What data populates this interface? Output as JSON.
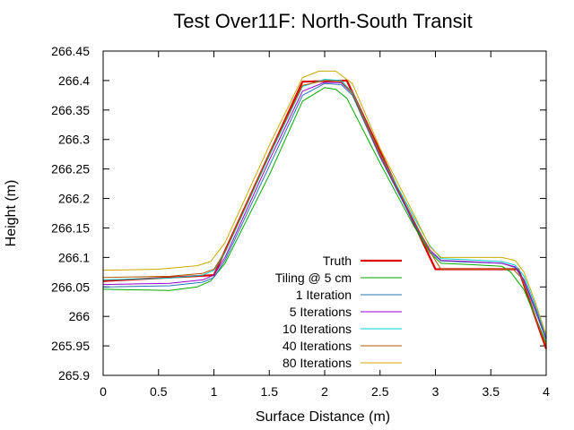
{
  "chart_data": {
    "type": "line",
    "title": "Test Over11F: North-South Transit",
    "xlabel": "Surface Distance (m)",
    "ylabel": "Height (m)",
    "xlim": [
      0,
      4
    ],
    "ylim": [
      265.9,
      266.45
    ],
    "x_ticks": [
      0,
      0.5,
      1,
      1.5,
      2,
      2.5,
      3,
      3.5,
      4
    ],
    "x_tick_labels": [
      "0",
      "0.5",
      "1",
      "1.5",
      "2",
      "2.5",
      "3",
      "3.5",
      "4"
    ],
    "y_ticks": [
      265.9,
      265.95,
      266,
      266.05,
      266.1,
      266.15,
      266.2,
      266.25,
      266.3,
      266.35,
      266.4,
      266.45
    ],
    "y_tick_labels": [
      "265.9",
      "265.95",
      "266",
      "266.05",
      "266.1",
      "266.15",
      "266.2",
      "266.25",
      "266.3",
      "266.35",
      "266.4",
      "266.45"
    ],
    "grid": false,
    "legend_position": "bottom-center",
    "series": [
      {
        "name": "Truth",
        "color": "#dd0000",
        "width": 2.2,
        "points": [
          [
            0,
            266.06
          ],
          [
            1,
            266.07
          ],
          [
            1.8,
            266.398
          ],
          [
            2.2,
            266.4
          ],
          [
            3,
            266.08
          ],
          [
            3.75,
            266.08
          ],
          [
            4,
            265.945
          ]
        ]
      },
      {
        "name": "Tiling @ 5 cm",
        "color": "#00aa00",
        "width": 1,
        "points": [
          [
            0,
            266.046
          ],
          [
            0.6,
            266.044
          ],
          [
            0.85,
            266.05
          ],
          [
            0.97,
            266.06
          ],
          [
            1.1,
            266.09
          ],
          [
            1.5,
            266.24
          ],
          [
            1.8,
            266.365
          ],
          [
            2.0,
            266.388
          ],
          [
            2.1,
            266.385
          ],
          [
            2.2,
            266.37
          ],
          [
            2.5,
            266.26
          ],
          [
            2.8,
            266.155
          ],
          [
            2.95,
            266.108
          ],
          [
            3.05,
            266.09
          ],
          [
            3.3,
            266.088
          ],
          [
            3.6,
            266.085
          ],
          [
            3.68,
            266.075
          ],
          [
            3.8,
            266.045
          ],
          [
            3.9,
            266.0
          ],
          [
            4,
            265.955
          ]
        ]
      },
      {
        "name": "1 Iteration",
        "color": "#1f77b4",
        "width": 1,
        "points": [
          [
            0,
            266.05
          ],
          [
            0.6,
            266.052
          ],
          [
            0.9,
            266.058
          ],
          [
            1.0,
            266.066
          ],
          [
            1.1,
            266.095
          ],
          [
            1.5,
            266.255
          ],
          [
            1.8,
            266.375
          ],
          [
            2.0,
            266.395
          ],
          [
            2.15,
            266.393
          ],
          [
            2.25,
            266.375
          ],
          [
            2.5,
            266.27
          ],
          [
            2.8,
            266.16
          ],
          [
            2.95,
            266.11
          ],
          [
            3.05,
            266.094
          ],
          [
            3.3,
            266.092
          ],
          [
            3.6,
            266.09
          ],
          [
            3.72,
            266.083
          ],
          [
            3.8,
            266.06
          ],
          [
            3.9,
            266.01
          ],
          [
            4,
            265.96
          ]
        ]
      },
      {
        "name": "5 Iterations",
        "color": "#9900cc",
        "width": 1,
        "points": [
          [
            0,
            266.054
          ],
          [
            0.6,
            266.056
          ],
          [
            0.9,
            266.062
          ],
          [
            1.0,
            266.07
          ],
          [
            1.1,
            266.1
          ],
          [
            1.5,
            266.265
          ],
          [
            1.8,
            266.382
          ],
          [
            2.0,
            266.397
          ],
          [
            2.15,
            266.396
          ],
          [
            2.25,
            266.378
          ],
          [
            2.5,
            266.272
          ],
          [
            2.8,
            266.162
          ],
          [
            2.95,
            266.113
          ],
          [
            3.05,
            266.095
          ],
          [
            3.3,
            266.093
          ],
          [
            3.6,
            266.09
          ],
          [
            3.72,
            266.084
          ],
          [
            3.8,
            266.062
          ],
          [
            3.9,
            266.015
          ],
          [
            4,
            265.962
          ]
        ]
      },
      {
        "name": "10 Iterations",
        "color": "#00cccc",
        "width": 1,
        "points": [
          [
            0,
            266.062
          ],
          [
            0.6,
            266.065
          ],
          [
            0.9,
            266.07
          ],
          [
            1.0,
            266.078
          ],
          [
            1.1,
            266.108
          ],
          [
            1.5,
            266.272
          ],
          [
            1.8,
            266.39
          ],
          [
            2.0,
            266.402
          ],
          [
            2.15,
            266.4
          ],
          [
            2.25,
            266.38
          ],
          [
            2.5,
            266.275
          ],
          [
            2.8,
            266.17
          ],
          [
            2.95,
            266.12
          ],
          [
            3.05,
            266.098
          ],
          [
            3.3,
            266.096
          ],
          [
            3.6,
            266.093
          ],
          [
            3.72,
            266.087
          ],
          [
            3.8,
            266.068
          ],
          [
            3.9,
            266.02
          ],
          [
            4,
            265.965
          ]
        ]
      },
      {
        "name": "40 Iterations",
        "color": "#b35900",
        "width": 1,
        "points": [
          [
            0,
            266.066
          ],
          [
            0.6,
            266.068
          ],
          [
            0.9,
            266.073
          ],
          [
            1.0,
            266.08
          ],
          [
            1.1,
            266.11
          ],
          [
            1.5,
            266.275
          ],
          [
            1.8,
            266.392
          ],
          [
            2.0,
            266.4
          ],
          [
            2.15,
            266.398
          ],
          [
            2.25,
            266.378
          ],
          [
            2.5,
            266.274
          ],
          [
            2.8,
            266.165
          ],
          [
            2.95,
            266.11
          ],
          [
            3.05,
            266.08
          ],
          [
            3.3,
            266.08
          ],
          [
            3.7,
            266.08
          ],
          [
            3.78,
            266.065
          ],
          [
            3.85,
            266.03
          ],
          [
            3.92,
            265.99
          ],
          [
            4,
            265.95
          ]
        ]
      },
      {
        "name": "80 Iterations",
        "color": "#ccaa00",
        "width": 1,
        "points": [
          [
            0,
            266.078
          ],
          [
            0.5,
            266.08
          ],
          [
            0.85,
            266.086
          ],
          [
            0.97,
            266.093
          ],
          [
            1.1,
            266.125
          ],
          [
            1.5,
            266.29
          ],
          [
            1.8,
            266.405
          ],
          [
            1.95,
            266.416
          ],
          [
            2.1,
            266.416
          ],
          [
            2.25,
            266.395
          ],
          [
            2.5,
            266.285
          ],
          [
            2.8,
            266.175
          ],
          [
            2.95,
            266.118
          ],
          [
            3.05,
            266.1
          ],
          [
            3.3,
            266.1
          ],
          [
            3.6,
            266.1
          ],
          [
            3.72,
            266.095
          ],
          [
            3.8,
            266.075
          ],
          [
            3.9,
            266.025
          ],
          [
            4,
            265.968
          ]
        ]
      }
    ]
  }
}
